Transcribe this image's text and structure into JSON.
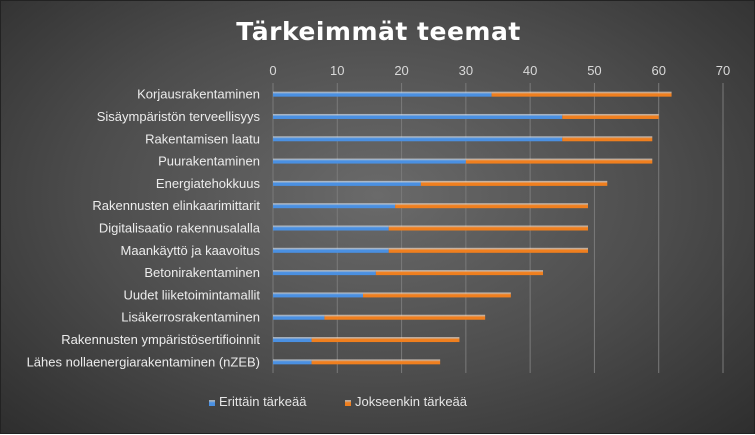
{
  "chart_data": {
    "type": "bar",
    "orientation": "horizontal",
    "stacked": true,
    "title": "Tärkeimmät teemat",
    "xlim": [
      0,
      70
    ],
    "xticks": [
      0,
      10,
      20,
      30,
      40,
      50,
      60,
      70
    ],
    "x_axis_position": "top",
    "grid": true,
    "legend_position": "bottom",
    "categories": [
      "Korjausrakentaminen",
      "Sisäympäristön terveellisyys",
      "Rakentamisen laatu",
      "Puurakentaminen",
      "Energiatehokkuus",
      "Rakennusten elinkaarimittarit",
      "Digitalisaatio rakennusalalla",
      "Maankäyttö ja kaavoitus",
      "Betonirakentaminen",
      "Uudet liiketoimintamallit",
      "Lisäkerrosrakentaminen",
      "Rakennusten ympäristösertifioinnit",
      "Lähes nollaenergiarakentaminen (nZEB)"
    ],
    "series": [
      {
        "name": "Erittäin tärkeää",
        "color": "#4a90e2",
        "values": [
          34,
          45,
          45,
          30,
          23,
          19,
          18,
          18,
          16,
          14,
          8,
          6,
          6
        ]
      },
      {
        "name": "Jokseenkin tärkeää",
        "color": "#f07f1e",
        "values": [
          28,
          15,
          14,
          29,
          29,
          30,
          31,
          31,
          26,
          23,
          25,
          23,
          20
        ]
      }
    ]
  }
}
